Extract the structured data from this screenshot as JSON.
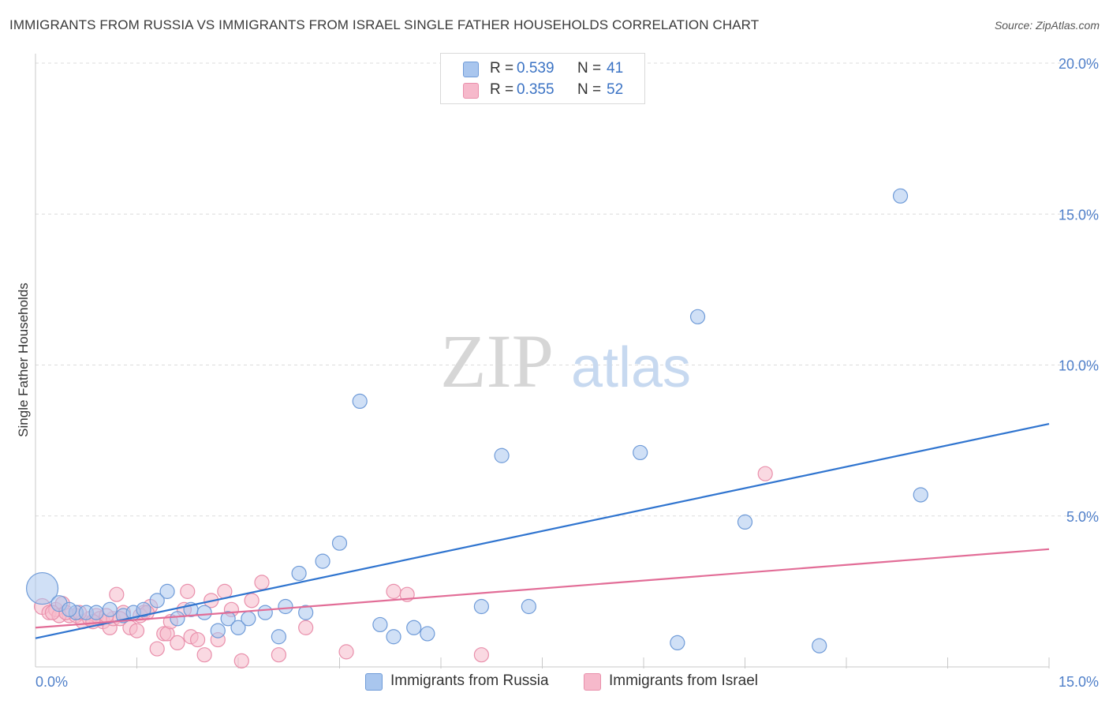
{
  "title": "IMMIGRANTS FROM RUSSIA VS IMMIGRANTS FROM ISRAEL SINGLE FATHER HOUSEHOLDS CORRELATION CHART",
  "source": "Source: ZipAtlas.com",
  "watermark": {
    "zip": "ZIP",
    "atlas": "atlas"
  },
  "legend": {
    "rows": [
      {
        "r_label": "R =",
        "r_value": "0.539",
        "n_label": "N =",
        "n_value": "41"
      },
      {
        "r_label": "R =",
        "r_value": "0.355",
        "n_label": "N =",
        "n_value": "52"
      }
    ]
  },
  "bottom_legend": [
    {
      "label": "Immigrants from Russia"
    },
    {
      "label": "Immigrants from Israel"
    }
  ],
  "colors": {
    "russia_fill": "#a9c6ee",
    "russia_stroke": "#6f9bd8",
    "russia_line": "#2f74cf",
    "israel_fill": "#f6b9cb",
    "israel_stroke": "#e98fab",
    "israel_line": "#e26d97",
    "grid": "#dcdcdc",
    "axis": "#c8c8c8",
    "tick_text": "#4f7fc9"
  },
  "chart_data": {
    "type": "scatter",
    "title": "IMMIGRANTS FROM RUSSIA VS IMMIGRANTS FROM ISRAEL SINGLE FATHER HOUSEHOLDS CORRELATION CHART",
    "xlabel": "",
    "ylabel": "Single Father Households",
    "xlim": [
      0,
      15
    ],
    "ylim": [
      0,
      20
    ],
    "x_tick_labels": [
      "0.0%",
      "15.0%"
    ],
    "y_ticks": [
      5,
      10,
      15,
      20
    ],
    "y_tick_labels": [
      "5.0%",
      "10.0%",
      "15.0%",
      "20.0%"
    ],
    "series": [
      {
        "name": "Immigrants from Russia",
        "r": 0.539,
        "n": 41,
        "trend": {
          "x": [
            0,
            15
          ],
          "y": [
            0.95,
            8.05
          ]
        },
        "points": [
          [
            0.1,
            2.6,
            20
          ],
          [
            0.35,
            2.1,
            10
          ],
          [
            0.6,
            1.8,
            9
          ],
          [
            0.75,
            1.8,
            9
          ],
          [
            0.9,
            1.8,
            9
          ],
          [
            1.1,
            1.9,
            9
          ],
          [
            1.3,
            1.7,
            9
          ],
          [
            1.45,
            1.8,
            9
          ],
          [
            1.6,
            1.9,
            9
          ],
          [
            1.8,
            2.2,
            9
          ],
          [
            1.95,
            2.5,
            9
          ],
          [
            2.1,
            1.6,
            9
          ],
          [
            2.3,
            1.9,
            9
          ],
          [
            2.5,
            1.8,
            9
          ],
          [
            2.7,
            1.2,
            9
          ],
          [
            2.85,
            1.6,
            9
          ],
          [
            3.0,
            1.3,
            9
          ],
          [
            3.15,
            1.6,
            9
          ],
          [
            3.4,
            1.8,
            9
          ],
          [
            3.6,
            1.0,
            9
          ],
          [
            3.7,
            2.0,
            9
          ],
          [
            3.9,
            3.1,
            9
          ],
          [
            4.0,
            1.8,
            9
          ],
          [
            4.25,
            3.5,
            9
          ],
          [
            4.5,
            4.1,
            9
          ],
          [
            4.8,
            8.8,
            9
          ],
          [
            5.1,
            1.4,
            9
          ],
          [
            5.3,
            1.0,
            9
          ],
          [
            5.6,
            1.3,
            9
          ],
          [
            5.8,
            1.1,
            9
          ],
          [
            6.6,
            2.0,
            9
          ],
          [
            6.9,
            7.0,
            9
          ],
          [
            7.3,
            2.0,
            9
          ],
          [
            8.95,
            7.1,
            9
          ],
          [
            9.5,
            0.8,
            9
          ],
          [
            9.8,
            11.6,
            9
          ],
          [
            10.5,
            4.8,
            9
          ],
          [
            11.6,
            0.7,
            9
          ],
          [
            12.8,
            15.6,
            9
          ],
          [
            13.1,
            5.7,
            9
          ],
          [
            0.5,
            1.9,
            9
          ]
        ]
      },
      {
        "name": "Immigrants from Israel",
        "r": 0.355,
        "n": 52,
        "trend": {
          "x": [
            0,
            15
          ],
          "y": [
            1.3,
            3.9
          ]
        },
        "points": [
          [
            0.1,
            2.0,
            10
          ],
          [
            0.2,
            1.8,
            9
          ],
          [
            0.3,
            1.9,
            9
          ],
          [
            0.4,
            2.1,
            9
          ],
          [
            0.5,
            1.7,
            9
          ],
          [
            0.6,
            1.7,
            9
          ],
          [
            0.7,
            1.5,
            9
          ],
          [
            0.8,
            1.6,
            9
          ],
          [
            0.9,
            1.7,
            9
          ],
          [
            1.0,
            1.5,
            9
          ],
          [
            1.1,
            1.3,
            9
          ],
          [
            1.15,
            1.6,
            9
          ],
          [
            1.2,
            2.4,
            9
          ],
          [
            1.3,
            1.8,
            9
          ],
          [
            1.4,
            1.3,
            9
          ],
          [
            1.5,
            1.2,
            9
          ],
          [
            1.6,
            1.8,
            9
          ],
          [
            1.7,
            2.0,
            9
          ],
          [
            1.8,
            0.6,
            9
          ],
          [
            1.9,
            1.1,
            9
          ],
          [
            1.95,
            1.1,
            9
          ],
          [
            2.0,
            1.5,
            9
          ],
          [
            2.1,
            0.8,
            9
          ],
          [
            2.2,
            1.9,
            9
          ],
          [
            2.25,
            2.5,
            9
          ],
          [
            2.3,
            1.0,
            9
          ],
          [
            2.4,
            0.9,
            9
          ],
          [
            2.5,
            0.4,
            9
          ],
          [
            2.6,
            2.2,
            9
          ],
          [
            2.7,
            0.9,
            9
          ],
          [
            2.8,
            2.5,
            9
          ],
          [
            2.9,
            1.9,
            9
          ],
          [
            3.05,
            0.2,
            9
          ],
          [
            3.2,
            2.2,
            9
          ],
          [
            3.35,
            2.8,
            9
          ],
          [
            3.6,
            0.4,
            9
          ],
          [
            4.0,
            1.3,
            9
          ],
          [
            4.6,
            0.5,
            9
          ],
          [
            5.3,
            2.5,
            9
          ],
          [
            5.5,
            2.4,
            9
          ],
          [
            6.6,
            0.4,
            9
          ],
          [
            10.8,
            6.4,
            9
          ],
          [
            0.35,
            1.7,
            9
          ],
          [
            0.65,
            1.8,
            9
          ],
          [
            0.95,
            1.6,
            9
          ],
          [
            1.25,
            1.6,
            9
          ],
          [
            1.55,
            1.7,
            9
          ],
          [
            1.65,
            1.8,
            9
          ],
          [
            0.45,
            1.8,
            9
          ],
          [
            0.85,
            1.5,
            9
          ],
          [
            1.05,
            1.7,
            9
          ],
          [
            0.25,
            1.8,
            9
          ]
        ]
      }
    ]
  }
}
